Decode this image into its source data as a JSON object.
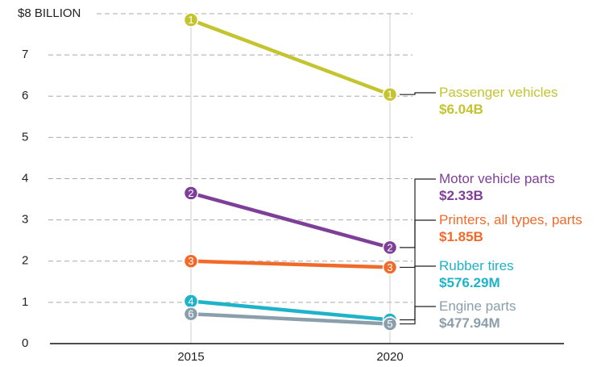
{
  "chart_data": {
    "type": "slope",
    "categories": [
      "2015",
      "2020"
    ],
    "ylim": [
      0,
      8
    ],
    "yticks": [
      0,
      1,
      2,
      3,
      4,
      5,
      6,
      7,
      {
        "value": 8,
        "label": "$8 BILLION"
      }
    ],
    "grid": true,
    "series": [
      {
        "name": "Passenger vehicles",
        "color": "#c3c42f",
        "values": [
          7.85,
          6.04
        ],
        "rank_labels": [
          "1",
          "1"
        ],
        "value_labels": [
          null,
          "$6.04B"
        ]
      },
      {
        "name": "Motor vehicle parts",
        "color": "#7e3f98",
        "values": [
          3.65,
          2.33
        ],
        "rank_labels": [
          "2",
          "2"
        ],
        "value_labels": [
          null,
          "$2.33B"
        ]
      },
      {
        "name": "Printers, all types, parts",
        "color": "#f26a2a",
        "values": [
          2.0,
          1.85
        ],
        "rank_labels": [
          "3",
          "3"
        ],
        "value_labels": [
          null,
          "$1.85B"
        ]
      },
      {
        "name": "Rubber tires",
        "color": "#1fb3c9",
        "values": [
          1.03,
          0.57629
        ],
        "rank_labels": [
          "4",
          "4"
        ],
        "value_labels": [
          null,
          "$576.29M"
        ]
      },
      {
        "name": "Engine parts",
        "color": "#8a9fab",
        "values": [
          0.72,
          0.47794
        ],
        "rank_labels": [
          "6",
          "5"
        ],
        "value_labels": [
          null,
          "$477.94M"
        ]
      }
    ]
  }
}
